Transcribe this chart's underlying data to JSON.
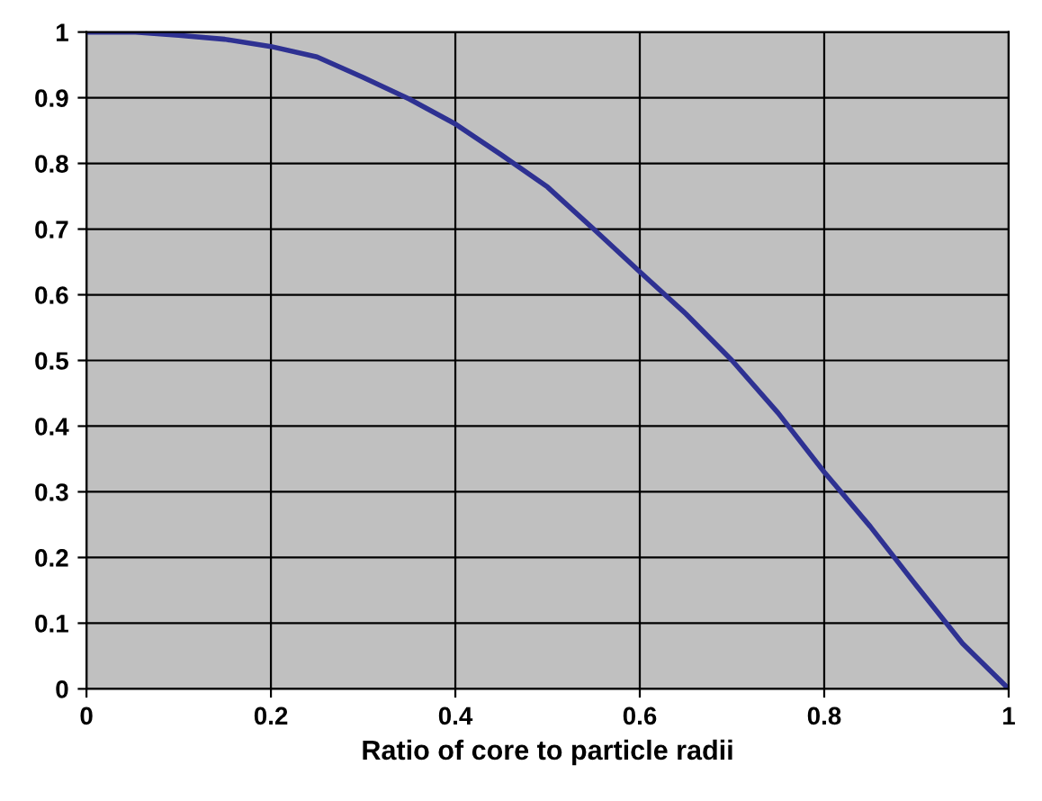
{
  "chart_data": {
    "type": "line",
    "xlabel": "Ratio of core to particle radii",
    "x": [
      0,
      0.05,
      0.1,
      0.15,
      0.2,
      0.25,
      0.3,
      0.35,
      0.4,
      0.45,
      0.5,
      0.55,
      0.6,
      0.65,
      0.7,
      0.75,
      0.8,
      0.85,
      0.9,
      0.95,
      1.0
    ],
    "series": [
      {
        "color": "#2e3192",
        "values": [
          1.0,
          1.0,
          0.995,
          0.989,
          0.978,
          0.962,
          0.931,
          0.898,
          0.86,
          0.813,
          0.764,
          0.7,
          0.635,
          0.571,
          0.5,
          0.42,
          0.33,
          0.247,
          0.157,
          0.069,
          0.0
        ]
      }
    ],
    "xlim": [
      0,
      1
    ],
    "xticks": [
      0,
      0.2,
      0.4,
      0.6,
      0.8,
      1
    ],
    "ylim": [
      0,
      1
    ],
    "yticks": [
      0,
      0.1,
      0.2,
      0.3,
      0.4,
      0.5,
      0.6,
      0.7,
      0.8,
      0.9,
      1
    ],
    "grid": true,
    "legend": false,
    "marker": "none",
    "line_style": "solid"
  }
}
